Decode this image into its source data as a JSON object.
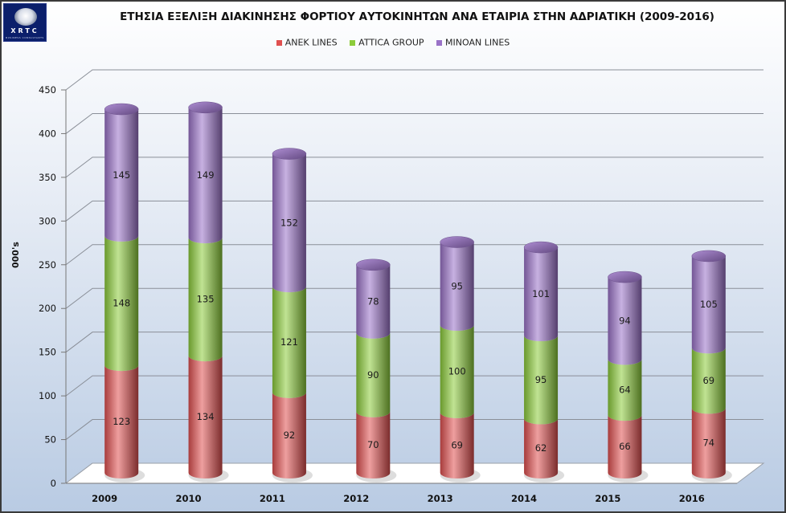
{
  "header": {
    "logo_text": "XRTC",
    "logo_subtext": "BUSINESS CONSULTANTS"
  },
  "chart_data": {
    "type": "bar",
    "stacked": true,
    "title": "ΕΤΗΣΙΑ ΕΞΕΛΙΞΗ ΔΙΑΚΙΝΗΣΗΣ ΦΟΡΤΙΟΥ ΑΥΤΟΚΙΝΗΤΩΝ ΑΝΑ ΕΤΑΙΡΙΑ ΣΤΗΝ ΑΔΡΙΑΤΙΚΗ (2009-2016)",
    "ylabel": "000's",
    "xlabel": "",
    "ylim": [
      0,
      450
    ],
    "yticks": [
      0,
      50,
      100,
      150,
      200,
      250,
      300,
      350,
      400,
      450
    ],
    "grid": true,
    "legend_position": "top",
    "categories": [
      "2009",
      "2010",
      "2011",
      "2012",
      "2013",
      "2014",
      "2015",
      "2016"
    ],
    "series": [
      {
        "name": "ANEK LINES",
        "color": "#e05050",
        "values": [
          123,
          134,
          92,
          70,
          69,
          62,
          66,
          74
        ]
      },
      {
        "name": "ATTICA GROUP",
        "color": "#8ccc3a",
        "values": [
          148,
          135,
          121,
          90,
          100,
          95,
          64,
          69
        ]
      },
      {
        "name": "MINOAN LINES",
        "color": "#9a72c8",
        "values": [
          145,
          149,
          152,
          78,
          95,
          101,
          94,
          105
        ]
      }
    ]
  }
}
